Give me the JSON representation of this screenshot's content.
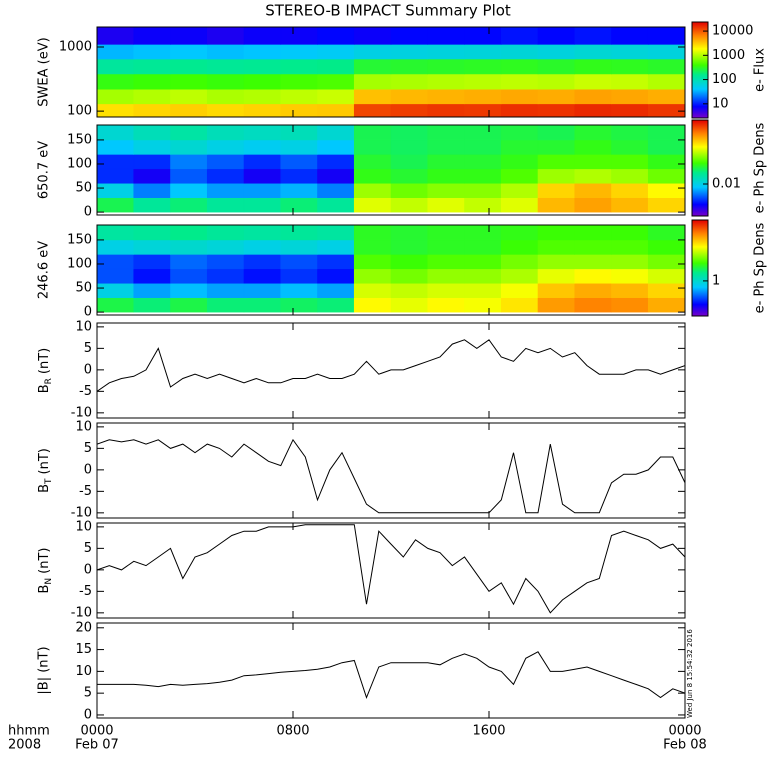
{
  "title": "STEREO-B IMPACT Summary Plot",
  "timestamp": "Wed Jun  8 15:54:32 2016",
  "x_axis": {
    "xlim": [
      0,
      24
    ],
    "xticks": [
      {
        "value": 0,
        "label": "0000"
      },
      {
        "value": 8,
        "label": "0800"
      },
      {
        "value": 16,
        "label": "1600"
      },
      {
        "value": 24,
        "label": "0000"
      }
    ],
    "dates": [
      {
        "value": 0,
        "label": "Feb 07"
      },
      {
        "value": 24,
        "label": "Feb 08"
      }
    ],
    "xlabel": "hhmm",
    "year": "2008"
  },
  "chart_data": [
    {
      "type": "heatmap",
      "ylabel": "SWEA (eV)",
      "ylog": true,
      "ylim": [
        81,
        2050
      ],
      "yticks": [
        100,
        1000
      ],
      "x_bins": [
        0,
        1.5,
        3,
        4.5,
        6,
        7.5,
        9,
        10.5,
        12,
        13.5,
        15,
        16.5,
        18,
        19.5,
        21,
        22.5,
        24
      ],
      "y_bins": [
        81,
        130,
        220,
        380,
        650,
        1100,
        2050
      ],
      "values": [
        [
          2500,
          2800,
          3000,
          2700,
          2900,
          3100,
          3200,
          12000,
          13000,
          14000,
          13500,
          15000,
          14500,
          16000,
          15500,
          14000
        ],
        [
          900,
          1000,
          1100,
          950,
          1000,
          1100,
          1200,
          3500,
          3800,
          4000,
          4200,
          4500,
          4300,
          4800,
          4600,
          4200
        ],
        [
          350,
          380,
          400,
          370,
          390,
          420,
          450,
          900,
          950,
          1000,
          1050,
          1100,
          1050,
          1200,
          1150,
          1000
        ],
        [
          130,
          140,
          150,
          140,
          145,
          155,
          160,
          280,
          290,
          300,
          310,
          320,
          300,
          330,
          320,
          300
        ],
        [
          35,
          38,
          40,
          37,
          39,
          42,
          45,
          55,
          58,
          60,
          62,
          65,
          60,
          68,
          64,
          60
        ],
        [
          6,
          7,
          7,
          6,
          7,
          7,
          8,
          7,
          8,
          8,
          8,
          9,
          8,
          9,
          8,
          8
        ]
      ],
      "colorbar": {
        "label": "e- Flux",
        "log": true,
        "lim": [
          2.6,
          23700
        ],
        "ticks": [
          10,
          100,
          1000,
          10000
        ]
      }
    },
    {
      "type": "heatmap",
      "ylabel": "650.7 eV",
      "ylog": false,
      "ylim": [
        -6,
        181
      ],
      "yticks": [
        0,
        50,
        100,
        150
      ],
      "x_bins": [
        0,
        1.5,
        3,
        4.5,
        6,
        7.5,
        9,
        10.5,
        12,
        13.5,
        15,
        16.5,
        18,
        19.5,
        21,
        22.5,
        24
      ],
      "y_bins": [
        0,
        30,
        60,
        90,
        120,
        150,
        180
      ],
      "values": [
        [
          0.03,
          0.02,
          0.025,
          0.02,
          0.02,
          0.025,
          0.02,
          0.12,
          0.1,
          0.12,
          0.1,
          0.12,
          0.25,
          0.3,
          0.25,
          0.2
        ],
        [
          0.01,
          0.005,
          0.008,
          0.006,
          0.006,
          0.007,
          0.005,
          0.08,
          0.06,
          0.07,
          0.07,
          0.09,
          0.2,
          0.25,
          0.2,
          0.15
        ],
        [
          0.003,
          0.002,
          0.004,
          0.003,
          0.002,
          0.003,
          0.002,
          0.04,
          0.035,
          0.04,
          0.04,
          0.05,
          0.08,
          0.09,
          0.08,
          0.06
        ],
        [
          0.003,
          0.003,
          0.005,
          0.004,
          0.003,
          0.004,
          0.003,
          0.035,
          0.03,
          0.035,
          0.035,
          0.04,
          0.05,
          0.05,
          0.05,
          0.04
        ],
        [
          0.008,
          0.01,
          0.012,
          0.01,
          0.009,
          0.01,
          0.008,
          0.03,
          0.028,
          0.03,
          0.03,
          0.035,
          0.035,
          0.04,
          0.035,
          0.03
        ],
        [
          0.012,
          0.015,
          0.018,
          0.015,
          0.014,
          0.015,
          0.012,
          0.03,
          0.028,
          0.03,
          0.03,
          0.032,
          0.03,
          0.035,
          0.032,
          0.03
        ]
      ],
      "colorbar": {
        "label": "e- Ph Sp Dens",
        "log": true,
        "lim": [
          0.001,
          1
        ],
        "ticks": [
          0.01
        ]
      }
    },
    {
      "type": "heatmap",
      "ylabel": "246.6 eV",
      "ylog": false,
      "ylim": [
        -6,
        181
      ],
      "yticks": [
        0,
        50,
        100,
        150
      ],
      "x_bins": [
        0,
        1.5,
        3,
        4.5,
        6,
        7.5,
        9,
        10.5,
        12,
        13.5,
        15,
        16.5,
        18,
        19.5,
        21,
        22.5,
        24
      ],
      "y_bins": [
        0,
        30,
        60,
        90,
        120,
        150,
        180
      ],
      "values": [
        [
          2.5,
          2,
          2.5,
          2,
          2,
          2.2,
          2,
          12,
          10,
          12,
          11,
          14,
          25,
          30,
          28,
          22
        ],
        [
          0.8,
          0.5,
          0.6,
          0.5,
          0.5,
          0.6,
          0.5,
          9,
          8,
          9,
          9,
          11,
          18,
          22,
          20,
          16
        ],
        [
          0.3,
          0.2,
          0.3,
          0.25,
          0.2,
          0.25,
          0.2,
          6,
          5,
          6,
          6,
          7,
          10,
          12,
          11,
          9
        ],
        [
          0.3,
          0.25,
          0.35,
          0.3,
          0.25,
          0.3,
          0.25,
          4,
          3.5,
          4,
          4,
          5,
          6,
          6,
          6,
          5
        ],
        [
          0.8,
          0.9,
          1,
          0.9,
          0.8,
          0.9,
          0.8,
          3,
          2.8,
          3,
          3,
          3.5,
          4,
          4,
          4,
          3.5
        ],
        [
          1.5,
          1.6,
          1.8,
          1.6,
          1.5,
          1.6,
          1.5,
          3,
          2.8,
          3,
          3,
          3.2,
          3.5,
          3.5,
          3.5,
          3
        ]
      ],
      "colorbar": {
        "label": "e- Ph Sp Dens",
        "log": true,
        "lim": [
          0.08,
          80
        ],
        "ticks": [
          1
        ]
      }
    },
    {
      "type": "line",
      "ylabel": "B",
      "ylabel_subscript": "R",
      "ylabel_unit": "(nT)",
      "color": "#000000",
      "ylim": [
        -11.2,
        10.9
      ],
      "yticks": [
        -10,
        -5,
        0,
        5,
        10
      ],
      "x": [
        0,
        0.5,
        1,
        1.5,
        2,
        2.5,
        3,
        3.5,
        4,
        4.5,
        5,
        5.5,
        6,
        6.5,
        7,
        7.5,
        8,
        8.5,
        9,
        9.5,
        10,
        10.5,
        11,
        11.5,
        12,
        12.5,
        13,
        13.5,
        14,
        14.5,
        15,
        15.5,
        16,
        16.5,
        17,
        17.5,
        18,
        18.5,
        19,
        19.5,
        20,
        20.5,
        21,
        21.5,
        22,
        22.5,
        23,
        23.5,
        24
      ],
      "values": [
        -5,
        -3,
        -2,
        -1.5,
        0,
        5,
        -4,
        -2,
        -1,
        -2,
        -1,
        -2,
        -3,
        -2,
        -3,
        -3,
        -2,
        -2,
        -1,
        -2,
        -2,
        -1,
        2,
        -1,
        0,
        0,
        1,
        2,
        3,
        6,
        7,
        5,
        7,
        3,
        2,
        5,
        4,
        5,
        3,
        4,
        1,
        -1,
        -1,
        -1,
        0,
        0,
        -1,
        0,
        1
      ]
    },
    {
      "type": "line",
      "ylabel": "B",
      "ylabel_subscript": "T",
      "ylabel_unit": "(nT)",
      "color": "#000000",
      "ylim": [
        -11.2,
        10.9
      ],
      "yticks": [
        -10,
        -5,
        0,
        5,
        10
      ],
      "x": [
        0,
        0.5,
        1,
        1.5,
        2,
        2.5,
        3,
        3.5,
        4,
        4.5,
        5,
        5.5,
        6,
        6.5,
        7,
        7.5,
        8,
        8.5,
        9,
        9.5,
        10,
        10.5,
        11,
        11.5,
        12,
        12.5,
        13,
        13.5,
        14,
        14.5,
        15,
        15.5,
        16,
        16.5,
        17,
        17.5,
        18,
        18.5,
        19,
        19.5,
        20,
        20.5,
        21,
        21.5,
        22,
        22.5,
        23,
        23.5,
        24
      ],
      "values": [
        6,
        7,
        6.5,
        7,
        6,
        7,
        5,
        6,
        4,
        6,
        5,
        3,
        6,
        4,
        2,
        1,
        7,
        3,
        -7,
        0,
        4,
        -2,
        -8,
        -10,
        -10,
        -10,
        -10,
        -10,
        -10,
        -10,
        -10,
        -10,
        -10,
        -7,
        4,
        -10,
        -10,
        6,
        -8,
        -10,
        -10,
        -10,
        -3,
        -1,
        -1,
        0,
        3,
        3,
        -3
      ]
    },
    {
      "type": "line",
      "ylabel": "B",
      "ylabel_subscript": "N",
      "ylabel_unit": "(nT)",
      "color": "#000000",
      "ylim": [
        -11.2,
        10.9
      ],
      "yticks": [
        -10,
        -5,
        0,
        5,
        10
      ],
      "x": [
        0,
        0.5,
        1,
        1.5,
        2,
        2.5,
        3,
        3.5,
        4,
        4.5,
        5,
        5.5,
        6,
        6.5,
        7,
        7.5,
        8,
        8.5,
        9,
        9.5,
        10,
        10.5,
        11,
        11.5,
        12,
        12.5,
        13,
        13.5,
        14,
        14.5,
        15,
        15.5,
        16,
        16.5,
        17,
        17.5,
        18,
        18.5,
        19,
        19.5,
        20,
        20.5,
        21,
        21.5,
        22,
        22.5,
        23,
        23.5,
        24
      ],
      "values": [
        0,
        1,
        0,
        2,
        1,
        3,
        5,
        -2,
        3,
        4,
        6,
        8,
        9,
        9,
        10,
        10,
        10,
        10.5,
        10.5,
        10.5,
        10.5,
        10.5,
        -8,
        9,
        6,
        3,
        7,
        5,
        4,
        1,
        3,
        -1,
        -5,
        -3,
        -8,
        -2,
        -5,
        -10,
        -7,
        -5,
        -3,
        -2,
        8,
        9,
        8,
        7,
        5,
        6,
        3
      ]
    },
    {
      "type": "line",
      "ylabel": "|B| (nT)",
      "color": "#000000",
      "ylim": [
        -0.7,
        21.1
      ],
      "yticks": [
        0,
        5,
        10,
        15,
        20
      ],
      "x": [
        0,
        0.5,
        1,
        1.5,
        2,
        2.5,
        3,
        3.5,
        4,
        4.5,
        5,
        5.5,
        6,
        6.5,
        7,
        7.5,
        8,
        8.5,
        9,
        9.5,
        10,
        10.5,
        11,
        11.5,
        12,
        12.5,
        13,
        13.5,
        14,
        14.5,
        15,
        15.5,
        16,
        16.5,
        17,
        17.5,
        18,
        18.5,
        19,
        19.5,
        20,
        20.5,
        21,
        21.5,
        22,
        22.5,
        23,
        23.5,
        24
      ],
      "values": [
        7,
        7,
        7,
        7,
        6.8,
        6.5,
        7,
        6.8,
        7,
        7.2,
        7.5,
        8,
        9,
        9.2,
        9.5,
        9.8,
        10,
        10.2,
        10.5,
        11,
        12,
        12.5,
        4,
        11,
        12,
        12,
        12,
        12,
        11.5,
        13,
        14,
        13,
        11,
        10,
        7,
        13,
        14.5,
        10,
        10,
        10.5,
        11,
        10,
        9,
        8,
        7,
        6,
        4,
        6,
        5
      ]
    }
  ]
}
